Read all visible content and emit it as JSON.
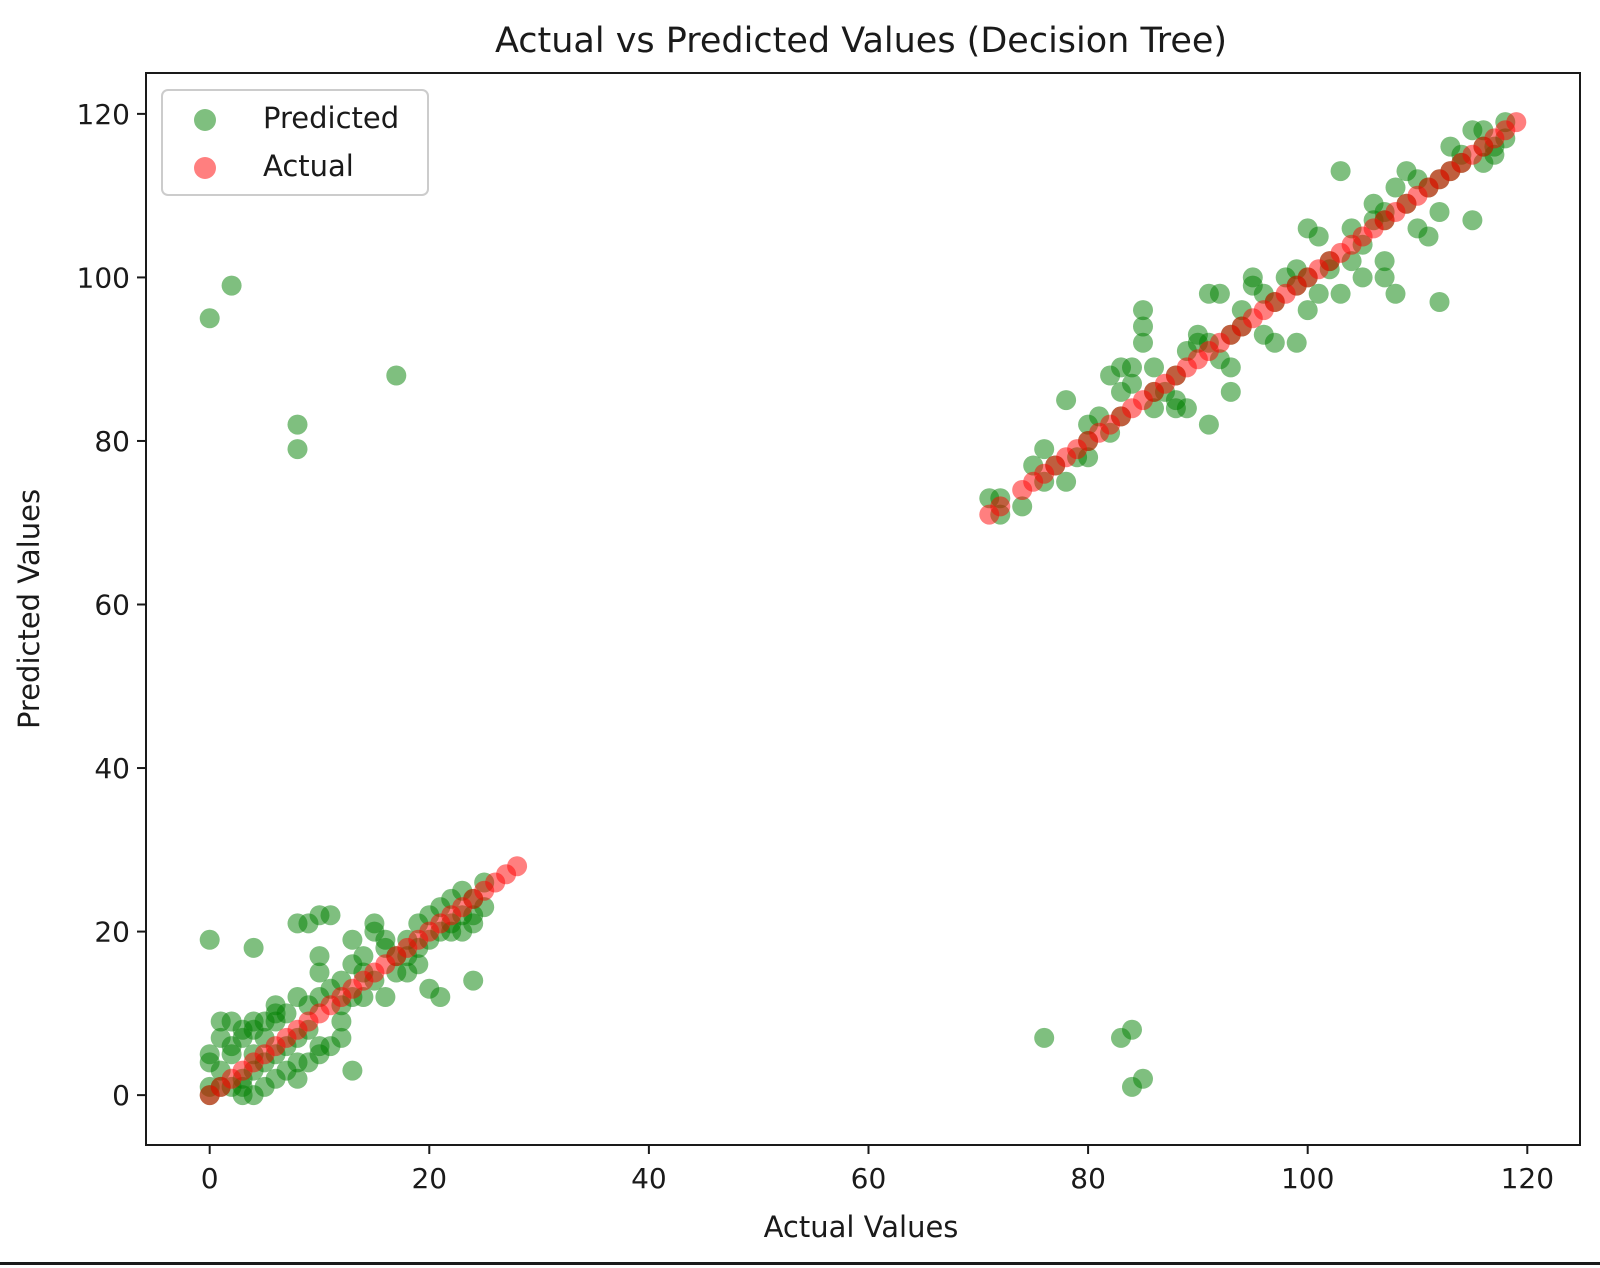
{
  "chart_data": {
    "type": "scatter",
    "title": "Actual vs Predicted Values (Decision Tree)",
    "xlabel": "Actual Values",
    "ylabel": "Predicted Values",
    "xlim": [
      -5.8,
      124.8
    ],
    "ylim": [
      -6.1,
      125
    ],
    "xticks": [
      0,
      20,
      40,
      60,
      80,
      100,
      120
    ],
    "yticks": [
      0,
      20,
      40,
      60,
      80,
      100,
      120
    ],
    "legend": {
      "position": "upper left",
      "entries": [
        "Predicted",
        "Actual"
      ]
    },
    "colors": {
      "predicted": "#008000",
      "actual": "#ff0000",
      "opacity": 0.5
    },
    "series": [
      {
        "name": "Predicted",
        "color": "#008000",
        "points": [
          [
            0,
            95
          ],
          [
            2,
            99
          ],
          [
            8,
            82
          ],
          [
            8,
            79
          ],
          [
            17,
            88
          ],
          [
            0,
            19
          ],
          [
            4,
            18
          ],
          [
            8,
            21
          ],
          [
            9,
            21
          ],
          [
            10,
            22
          ],
          [
            11,
            22
          ],
          [
            13,
            19
          ],
          [
            15,
            21
          ],
          [
            20,
            13
          ],
          [
            21,
            12
          ],
          [
            24,
            14
          ],
          [
            13,
            3
          ],
          [
            0,
            5
          ],
          [
            0,
            4
          ],
          [
            1,
            9
          ],
          [
            2,
            9
          ],
          [
            1,
            7
          ],
          [
            3,
            8
          ],
          [
            2,
            6
          ],
          [
            3,
            0
          ],
          [
            4,
            0
          ],
          [
            5,
            1
          ],
          [
            6,
            2
          ],
          [
            4,
            5
          ],
          [
            5,
            7
          ],
          [
            6,
            9
          ],
          [
            7,
            3
          ],
          [
            8,
            4
          ],
          [
            8,
            2
          ],
          [
            9,
            4
          ],
          [
            10,
            5
          ],
          [
            11,
            6
          ],
          [
            12,
            7
          ],
          [
            12,
            14
          ],
          [
            13,
            16
          ],
          [
            14,
            17
          ],
          [
            15,
            20
          ],
          [
            16,
            18
          ],
          [
            17,
            17
          ],
          [
            18,
            19
          ],
          [
            19,
            21
          ],
          [
            20,
            22
          ],
          [
            21,
            23
          ],
          [
            22,
            24
          ],
          [
            23,
            22
          ],
          [
            24,
            22
          ],
          [
            25,
            23
          ],
          [
            25,
            26
          ],
          [
            24,
            21
          ],
          [
            23,
            20
          ],
          [
            22,
            20
          ],
          [
            19,
            16
          ],
          [
            18,
            15
          ],
          [
            16,
            12
          ],
          [
            14,
            12
          ],
          [
            12,
            9
          ],
          [
            10,
            6
          ],
          [
            9,
            8
          ],
          [
            7,
            10
          ],
          [
            6,
            10
          ],
          [
            5,
            9
          ],
          [
            4,
            8
          ],
          [
            3,
            7
          ],
          [
            2,
            5
          ],
          [
            1,
            1
          ],
          [
            0,
            0
          ],
          [
            0,
            1
          ],
          [
            1,
            3
          ],
          [
            2,
            1
          ],
          [
            3,
            2
          ],
          [
            4,
            3
          ],
          [
            5,
            4
          ],
          [
            6,
            5
          ],
          [
            7,
            6
          ],
          [
            8,
            7
          ],
          [
            9,
            11
          ],
          [
            10,
            12
          ],
          [
            11,
            13
          ],
          [
            12,
            11
          ],
          [
            13,
            12
          ],
          [
            14,
            15
          ],
          [
            15,
            14
          ],
          [
            16,
            19
          ],
          [
            17,
            15
          ],
          [
            18,
            17
          ],
          [
            19,
            18
          ],
          [
            20,
            19
          ],
          [
            21,
            20
          ],
          [
            22,
            21
          ],
          [
            23,
            25
          ],
          [
            24,
            24
          ],
          [
            10,
            15
          ],
          [
            10,
            17
          ],
          [
            8,
            12
          ],
          [
            6,
            11
          ],
          [
            4,
            9
          ],
          [
            3,
            1
          ],
          [
            76,
            7
          ],
          [
            83,
            7
          ],
          [
            84,
            8
          ],
          [
            84,
            1
          ],
          [
            85,
            2
          ],
          [
            71,
            73
          ],
          [
            72,
            71
          ],
          [
            72,
            73
          ],
          [
            74,
            72
          ],
          [
            76,
            79
          ],
          [
            75,
            77
          ],
          [
            76,
            75
          ],
          [
            78,
            85
          ],
          [
            78,
            75
          ],
          [
            79,
            78
          ],
          [
            80,
            82
          ],
          [
            80,
            78
          ],
          [
            81,
            83
          ],
          [
            82,
            81
          ],
          [
            82,
            88
          ],
          [
            83,
            86
          ],
          [
            83,
            89
          ],
          [
            84,
            87
          ],
          [
            84,
            89
          ],
          [
            85,
            92
          ],
          [
            85,
            94
          ],
          [
            85,
            96
          ],
          [
            86,
            89
          ],
          [
            86,
            84
          ],
          [
            87,
            86
          ],
          [
            88,
            85
          ],
          [
            88,
            84
          ],
          [
            89,
            84
          ],
          [
            89,
            91
          ],
          [
            90,
            93
          ],
          [
            90,
            92
          ],
          [
            91,
            82
          ],
          [
            91,
            98
          ],
          [
            92,
            98
          ],
          [
            92,
            90
          ],
          [
            93,
            89
          ],
          [
            93,
            86
          ],
          [
            94,
            96
          ],
          [
            95,
            100
          ],
          [
            95,
            99
          ],
          [
            96,
            98
          ],
          [
            96,
            93
          ],
          [
            97,
            92
          ],
          [
            98,
            100
          ],
          [
            99,
            92
          ],
          [
            99,
            101
          ],
          [
            100,
            106
          ],
          [
            100,
            96
          ],
          [
            101,
            98
          ],
          [
            101,
            105
          ],
          [
            102,
            101
          ],
          [
            103,
            113
          ],
          [
            103,
            98
          ],
          [
            104,
            106
          ],
          [
            104,
            102
          ],
          [
            105,
            100
          ],
          [
            106,
            107
          ],
          [
            106,
            109
          ],
          [
            107,
            108
          ],
          [
            107,
            102
          ],
          [
            107,
            100
          ],
          [
            108,
            98
          ],
          [
            108,
            111
          ],
          [
            109,
            113
          ],
          [
            110,
            112
          ],
          [
            110,
            106
          ],
          [
            111,
            105
          ],
          [
            112,
            108
          ],
          [
            112,
            97
          ],
          [
            113,
            116
          ],
          [
            114,
            114
          ],
          [
            115,
            107
          ],
          [
            115,
            118
          ],
          [
            116,
            116
          ],
          [
            116,
            118
          ],
          [
            117,
            115
          ],
          [
            117,
            116
          ],
          [
            118,
            119
          ],
          [
            118,
            117
          ],
          [
            88,
            88
          ],
          [
            94,
            94
          ],
          [
            102,
            102
          ],
          [
            109,
            109
          ],
          [
            80,
            80
          ],
          [
            97,
            97
          ],
          [
            114,
            115
          ],
          [
            111,
            111
          ],
          [
            105,
            104
          ],
          [
            91,
            92
          ],
          [
            77,
            77
          ],
          [
            83,
            83
          ],
          [
            86,
            86
          ],
          [
            99,
            99
          ],
          [
            107,
            107
          ],
          [
            113,
            113
          ],
          [
            116,
            114
          ],
          [
            112,
            112
          ],
          [
            100,
            100
          ],
          [
            93,
            93
          ]
        ]
      },
      {
        "name": "Actual",
        "color": "#ff0000",
        "points": [
          [
            0,
            0
          ],
          [
            1,
            1
          ],
          [
            2,
            2
          ],
          [
            3,
            3
          ],
          [
            4,
            4
          ],
          [
            5,
            5
          ],
          [
            6,
            6
          ],
          [
            7,
            7
          ],
          [
            8,
            8
          ],
          [
            9,
            9
          ],
          [
            10,
            10
          ],
          [
            11,
            11
          ],
          [
            12,
            12
          ],
          [
            13,
            13
          ],
          [
            14,
            14
          ],
          [
            15,
            15
          ],
          [
            16,
            16
          ],
          [
            17,
            17
          ],
          [
            18,
            18
          ],
          [
            19,
            19
          ],
          [
            20,
            20
          ],
          [
            21,
            21
          ],
          [
            22,
            22
          ],
          [
            23,
            23
          ],
          [
            24,
            24
          ],
          [
            25,
            25
          ],
          [
            26,
            26
          ],
          [
            27,
            27
          ],
          [
            28,
            28
          ],
          [
            71,
            71
          ],
          [
            72,
            72
          ],
          [
            74,
            74
          ],
          [
            75,
            75
          ],
          [
            76,
            76
          ],
          [
            77,
            77
          ],
          [
            78,
            78
          ],
          [
            79,
            79
          ],
          [
            80,
            80
          ],
          [
            81,
            81
          ],
          [
            82,
            82
          ],
          [
            83,
            83
          ],
          [
            84,
            84
          ],
          [
            85,
            85
          ],
          [
            86,
            86
          ],
          [
            87,
            87
          ],
          [
            88,
            88
          ],
          [
            89,
            89
          ],
          [
            90,
            90
          ],
          [
            91,
            91
          ],
          [
            92,
            92
          ],
          [
            93,
            93
          ],
          [
            94,
            94
          ],
          [
            95,
            95
          ],
          [
            96,
            96
          ],
          [
            97,
            97
          ],
          [
            98,
            98
          ],
          [
            99,
            99
          ],
          [
            100,
            100
          ],
          [
            101,
            101
          ],
          [
            102,
            102
          ],
          [
            103,
            103
          ],
          [
            104,
            104
          ],
          [
            105,
            105
          ],
          [
            106,
            106
          ],
          [
            107,
            107
          ],
          [
            108,
            108
          ],
          [
            109,
            109
          ],
          [
            110,
            110
          ],
          [
            111,
            111
          ],
          [
            112,
            112
          ],
          [
            113,
            113
          ],
          [
            114,
            114
          ],
          [
            115,
            115
          ],
          [
            116,
            116
          ],
          [
            117,
            117
          ],
          [
            118,
            118
          ],
          [
            119,
            119
          ]
        ]
      }
    ]
  }
}
